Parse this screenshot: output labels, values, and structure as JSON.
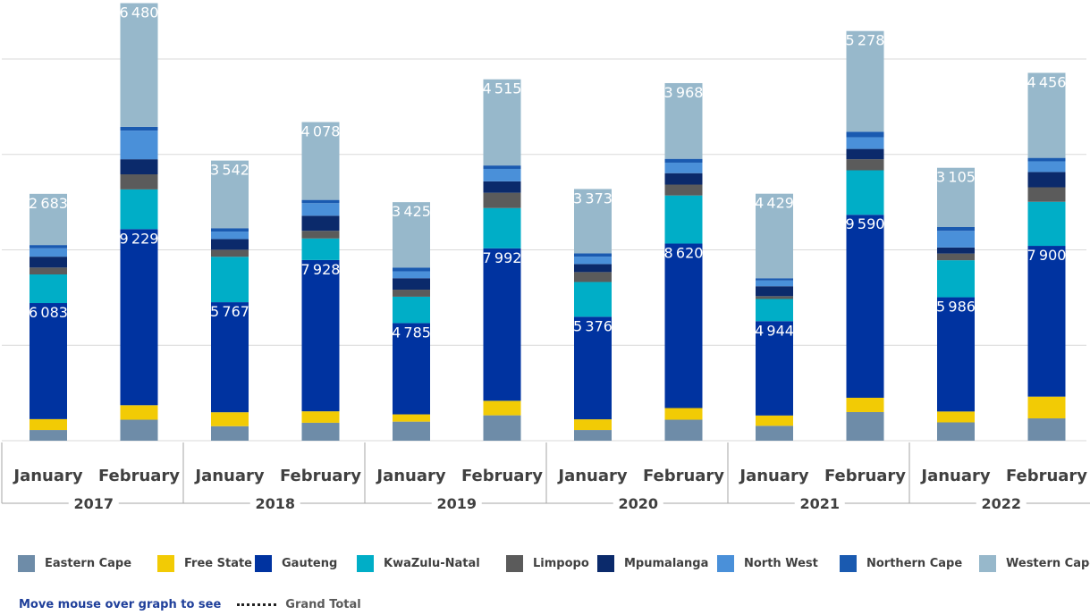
{
  "chart_data": {
    "type": "bar",
    "stacked": true,
    "years": [
      "2017",
      "2017",
      "2018",
      "2018",
      "2019",
      "2019",
      "2020",
      "2020",
      "2021",
      "2021",
      "2022",
      "2022"
    ],
    "year_labels": [
      "2017",
      "2018",
      "2019",
      "2020",
      "2021",
      "2022"
    ],
    "categories": [
      "January",
      "February",
      "January",
      "February",
      "January",
      "February",
      "January",
      "February",
      "January",
      "February",
      "January",
      "February"
    ],
    "ylim": [
      0,
      23000
    ],
    "grid": true,
    "legend_position": "bottom",
    "series": [
      {
        "name": "Eastern Cape",
        "color": "#6e8ca8",
        "values": [
          560,
          1100,
          760,
          940,
          1000,
          1330,
          560,
          1100,
          780,
          1500,
          960,
          1170
        ]
      },
      {
        "name": "Free State",
        "color": "#f2cb05",
        "values": [
          570,
          760,
          730,
          600,
          380,
          760,
          560,
          610,
          540,
          750,
          570,
          1140
        ]
      },
      {
        "name": "Gauteng",
        "color": "#0033a0",
        "labeled": true,
        "values": [
          6083,
          9229,
          5767,
          7928,
          4785,
          7992,
          5376,
          8620,
          4944,
          9590,
          5986,
          7900
        ]
      },
      {
        "name": "KwaZulu-Natal",
        "color": "#00aec7",
        "values": [
          1500,
          2080,
          2380,
          1130,
          1380,
          2110,
          1820,
          2520,
          1160,
          2330,
          1940,
          2310
        ]
      },
      {
        "name": "Limpopo",
        "color": "#5b5b5b",
        "values": [
          360,
          790,
          370,
          400,
          370,
          800,
          520,
          570,
          150,
          580,
          350,
          760
        ]
      },
      {
        "name": "Mpumalanga",
        "color": "#0b2a6b",
        "values": [
          570,
          790,
          560,
          790,
          600,
          600,
          420,
          600,
          520,
          540,
          320,
          800
        ]
      },
      {
        "name": "North West",
        "color": "#4a90d9",
        "values": [
          440,
          1500,
          390,
          660,
          360,
          650,
          390,
          550,
          300,
          610,
          870,
          560
        ]
      },
      {
        "name": "Northern Cape",
        "color": "#1a5ab0",
        "values": [
          170,
          200,
          180,
          170,
          200,
          180,
          170,
          200,
          120,
          290,
          200,
          180
        ]
      },
      {
        "name": "Western Cape",
        "color": "#97b8cb",
        "labeled": true,
        "values": [
          2683,
          6480,
          3542,
          4078,
          3425,
          4515,
          3373,
          3968,
          4429,
          5278,
          3105,
          4456
        ]
      }
    ]
  },
  "footer": {
    "hint": "Move mouse over graph to see",
    "total_label": "Grand Total"
  },
  "colors": {
    "grid": "#d9d9d9",
    "axis_text": "#404040",
    "hint": "#1f3f9a"
  }
}
